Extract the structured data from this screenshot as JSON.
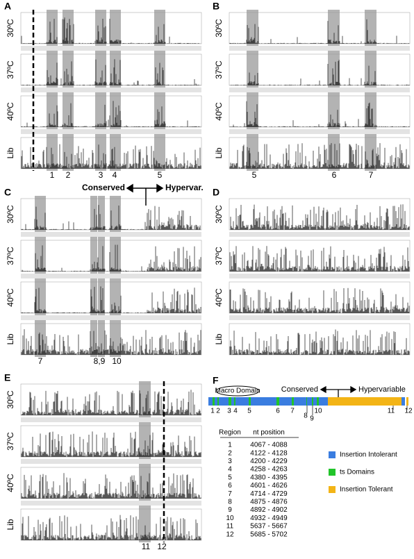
{
  "panels": [
    {
      "letter": "A",
      "rows": [
        "30ºC",
        "37ºC",
        "40ºC",
        "Lib"
      ],
      "regions": [
        "1",
        "2",
        "3",
        "4",
        "5"
      ]
    },
    {
      "letter": "B",
      "rows": [
        "30ºC",
        "37ºC",
        "40ºC",
        "Lib"
      ],
      "regions": [
        "5",
        "6",
        "7"
      ]
    },
    {
      "letter": "C",
      "rows": [
        "30ºC",
        "37ºC",
        "40ºC",
        "Lib"
      ],
      "regions": [
        "7",
        "8,9",
        "10"
      ],
      "conserved": "Conserved",
      "hypervariable": "Hypervar."
    },
    {
      "letter": "D",
      "rows": [
        "30ºC",
        "37ºC",
        "40ºC",
        "Lib"
      ],
      "regions": []
    },
    {
      "letter": "E",
      "rows": [
        "30ºC",
        "37ºC",
        "40ºC",
        "Lib"
      ],
      "regions": [
        "11",
        "12"
      ]
    }
  ],
  "panel_f": {
    "letter": "F",
    "macro_domain": "Macro Domain",
    "conserved": "Conserved",
    "hypervariable": "Hypervariable",
    "region_numbers": [
      "1",
      "2",
      "3",
      "4",
      "5",
      "6",
      "7",
      "8",
      "9",
      "10",
      "11",
      "12"
    ],
    "table": {
      "header": [
        "Region",
        "nt position"
      ],
      "rows": [
        [
          "1",
          "4067 - 4088"
        ],
        [
          "2",
          "4122 - 4128"
        ],
        [
          "3",
          "4200 - 4229"
        ],
        [
          "4",
          "4258 - 4263"
        ],
        [
          "5",
          "4380 - 4395"
        ],
        [
          "6",
          "4601 - 4626"
        ],
        [
          "7",
          "4714 - 4729"
        ],
        [
          "8",
          "4875 - 4876"
        ],
        [
          "9",
          "4892 - 4902"
        ],
        [
          "10",
          "4932 - 4949"
        ],
        [
          "11",
          "5637 - 5667"
        ],
        [
          "12",
          "5685 - 5702"
        ]
      ]
    },
    "legend": [
      "Insertion Intolerant",
      "ts Domains",
      "Insertion Tolerant"
    ]
  }
}
